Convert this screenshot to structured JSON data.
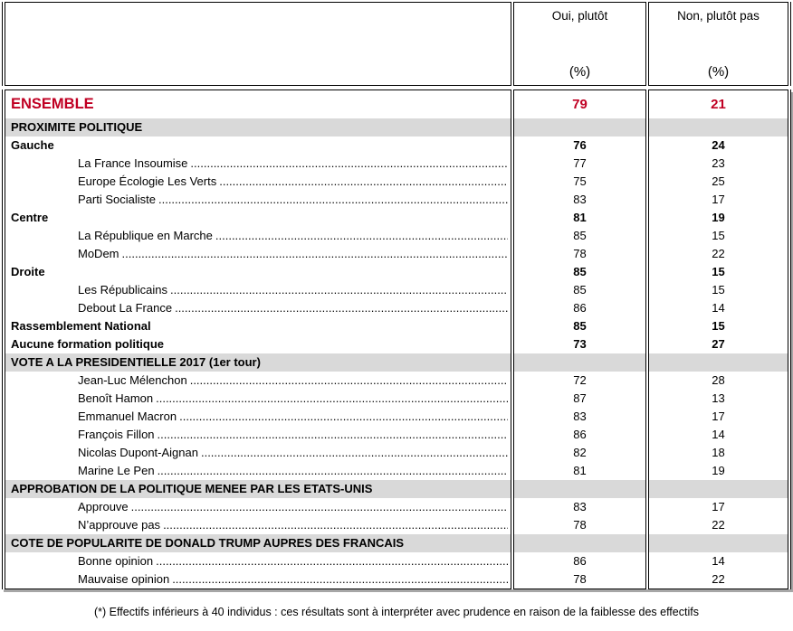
{
  "colors": {
    "accent_red": "#C00023",
    "section_gray": "#D9D9D9",
    "border_black": "#000000",
    "shadow_gray": "#A6A6A6"
  },
  "header": {
    "oui": {
      "label": "Oui, plutôt",
      "unit": "(%)"
    },
    "non": {
      "label": "Non, plutôt pas",
      "unit": "(%)"
    }
  },
  "ensemble": {
    "label": "ENSEMBLE",
    "oui": "79",
    "non": "21"
  },
  "rows": [
    {
      "type": "section",
      "label": "PROXIMITE POLITIQUE",
      "oui": "",
      "non": ""
    },
    {
      "type": "bold",
      "label": "Gauche",
      "oui": "76",
      "non": "24"
    },
    {
      "type": "item",
      "label": "La France Insoumise",
      "oui": "77",
      "non": "23"
    },
    {
      "type": "item",
      "label": "Europe Écologie Les Verts",
      "oui": "75",
      "non": "25"
    },
    {
      "type": "item",
      "label": "Parti Socialiste",
      "oui": "83",
      "non": "17"
    },
    {
      "type": "bold",
      "label": "Centre",
      "oui": "81",
      "non": "19"
    },
    {
      "type": "item",
      "label": "La République en Marche",
      "oui": "85",
      "non": "15"
    },
    {
      "type": "item",
      "label": "MoDem",
      "oui": "78",
      "non": "22"
    },
    {
      "type": "bold",
      "label": "Droite",
      "oui": "85",
      "non": "15"
    },
    {
      "type": "item",
      "label": "Les Républicains",
      "oui": "85",
      "non": "15"
    },
    {
      "type": "item",
      "label": "Debout La France",
      "oui": "86",
      "non": "14"
    },
    {
      "type": "bold",
      "label": "Rassemblement National",
      "oui": "85",
      "non": "15"
    },
    {
      "type": "bold",
      "label": "Aucune formation politique",
      "oui": "73",
      "non": "27"
    },
    {
      "type": "section",
      "label": "VOTE A LA PRESIDENTIELLE 2017 (1er tour)",
      "oui": "",
      "non": ""
    },
    {
      "type": "item",
      "label": "Jean-Luc Mélenchon",
      "oui": "72",
      "non": "28"
    },
    {
      "type": "item",
      "label": "Benoît Hamon",
      "oui": "87",
      "non": "13"
    },
    {
      "type": "item",
      "label": "Emmanuel Macron",
      "oui": "83",
      "non": "17"
    },
    {
      "type": "item",
      "label": "François Fillon",
      "oui": "86",
      "non": "14"
    },
    {
      "type": "item",
      "label": "Nicolas Dupont-Aignan",
      "oui": "82",
      "non": "18"
    },
    {
      "type": "item",
      "label": "Marine Le Pen",
      "oui": "81",
      "non": "19"
    },
    {
      "type": "section",
      "label": "APPROBATION DE LA POLITIQUE MENEE PAR LES ETATS-UNIS",
      "oui": "",
      "non": ""
    },
    {
      "type": "item",
      "label": "Approuve",
      "oui": "83",
      "non": "17"
    },
    {
      "type": "item",
      "label": "N’approuve pas",
      "oui": "78",
      "non": "22"
    },
    {
      "type": "section",
      "label": "COTE DE POPULARITE DE DONALD TRUMP AUPRES DES FRANCAIS",
      "oui": "",
      "non": ""
    },
    {
      "type": "item",
      "label": "Bonne opinion",
      "oui": "86",
      "non": "14"
    },
    {
      "type": "item",
      "label": "Mauvaise opinion",
      "oui": "78",
      "non": "22"
    }
  ],
  "footnote": "(*) Effectifs inférieurs à 40 individus : ces résultats sont à interpréter avec prudence en raison de la faiblesse des effectifs"
}
